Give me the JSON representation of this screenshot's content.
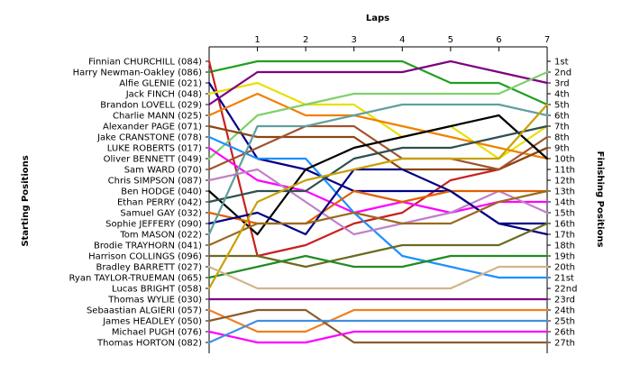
{
  "chart_data": {
    "type": "line",
    "title": "",
    "xlabel": "Laps",
    "ylabel_left": "Starting Positions",
    "ylabel_right": "Finishing Positions",
    "laps": [
      0,
      1,
      2,
      3,
      4,
      5,
      6,
      7
    ],
    "lap_ticks": [
      "1",
      "2",
      "3",
      "4",
      "5",
      "6",
      "7"
    ],
    "finish_labels": [
      "1st",
      "2nd",
      "3rd",
      "4th",
      "5th",
      "6th",
      "7th",
      "8th",
      "9th",
      "10th",
      "11th",
      "12th",
      "13th",
      "14th",
      "15th",
      "16th",
      "17th",
      "18th",
      "19th",
      "20th",
      "21st",
      "22nd",
      "23rd",
      "24th",
      "25th",
      "26th",
      "27th"
    ],
    "grid": false,
    "series": [
      {
        "name": "Harry Newman-Oakley (086)",
        "color": "#1fa01f",
        "positions": [
          2,
          1,
          1,
          1,
          1,
          3,
          3,
          5
        ]
      },
      {
        "name": "Finnian CHURCHILL (084)",
        "color": "#c82020",
        "positions": [
          1,
          19,
          18,
          16,
          15,
          12,
          11,
          9
        ]
      },
      {
        "name": "Alfie GLENIE (021)",
        "color": "#000088",
        "positions": [
          3,
          10,
          11,
          13,
          13,
          13,
          16,
          16
        ]
      },
      {
        "name": "Jack FINCH (048)",
        "color": "#e8e000",
        "positions": [
          4,
          3,
          5,
          5,
          8,
          7,
          10,
          7
        ]
      },
      {
        "name": "Brandon LOVELL (029)",
        "color": "#800080",
        "positions": [
          5,
          2,
          2,
          2,
          2,
          1,
          2,
          3
        ]
      },
      {
        "name": "Charlie MANN (025)",
        "color": "#f08000",
        "positions": [
          6,
          4,
          6,
          6,
          7,
          8,
          9,
          10
        ]
      },
      {
        "name": "Oliver BENNETT (049)",
        "color": "#7fd06a",
        "positions": [
          10,
          6,
          5,
          4,
          4,
          4,
          4,
          2
        ]
      },
      {
        "name": "Alexander PAGE (071)",
        "color": "#8b4513",
        "positions": [
          7,
          8,
          8,
          8,
          11,
          11,
          11,
          9
        ]
      },
      {
        "name": "LUKE ROBERTS (017)",
        "color": "#ff00ff",
        "positions": [
          9,
          12,
          13,
          15,
          14,
          15,
          14,
          14
        ]
      },
      {
        "name": "Jake CRANSTONE (078)",
        "color": "#1e90ff",
        "positions": [
          8,
          10,
          10,
          15,
          19,
          20,
          21,
          21
        ]
      },
      {
        "name": "Sam WARD (070)",
        "color": "#a0522d",
        "positions": [
          11,
          9,
          7,
          7,
          10,
          10,
          11,
          8
        ]
      },
      {
        "name": "Chris SIMPSON (087)",
        "color": "#c080c8",
        "positions": [
          12,
          11,
          14,
          17,
          16,
          15,
          13,
          15
        ]
      },
      {
        "name": "Ben HODGE (040)",
        "color": "#000000",
        "positions": [
          13,
          17,
          11,
          9,
          8,
          7,
          6,
          10
        ]
      },
      {
        "name": "Ethan PERRY (042)",
        "color": "#2f4f4f",
        "positions": [
          14,
          13,
          13,
          10,
          9,
          9,
          8,
          7
        ]
      },
      {
        "name": "Samuel GAY (032)",
        "color": "#e06000",
        "positions": [
          15,
          16,
          16,
          13,
          14,
          13,
          13,
          13
        ]
      },
      {
        "name": "Sophie JEFFERY (090)",
        "color": "#000080",
        "positions": [
          16,
          15,
          17,
          11,
          11,
          13,
          16,
          17
        ]
      },
      {
        "name": "Tom MASON (022)",
        "color": "#5fa0a0",
        "positions": [
          17,
          7,
          7,
          6,
          5,
          5,
          5,
          6
        ]
      },
      {
        "name": "Brodie TRAYHORN (041)",
        "color": "#9a6a20",
        "positions": [
          18,
          16,
          16,
          15,
          16,
          16,
          14,
          13
        ]
      },
      {
        "name": "Harrison COLLINGS (096)",
        "color": "#6b6b20",
        "positions": [
          19,
          19,
          20,
          19,
          18,
          18,
          18,
          16
        ]
      },
      {
        "name": "Ryan TAYLOR-TRUEMAN (065)",
        "color": "#228b22",
        "positions": [
          21,
          20,
          19,
          20,
          20,
          19,
          19,
          19
        ]
      },
      {
        "name": "Lucas BRIGHT (058)",
        "color": "#c8a000",
        "positions": [
          22,
          14,
          12,
          11,
          10,
          10,
          10,
          5
        ]
      },
      {
        "name": "Bradley BARRETT (027)",
        "color": "#d2b48c",
        "positions": [
          20,
          22,
          22,
          22,
          22,
          22,
          20,
          20
        ]
      },
      {
        "name": "Thomas WYLIE (030)",
        "color": "#800080",
        "positions": [
          23,
          23,
          23,
          23,
          23,
          23,
          23,
          23
        ]
      },
      {
        "name": "Sebaastian ALGIERI (057)",
        "color": "#f08020",
        "positions": [
          24,
          26,
          26,
          24,
          24,
          24,
          24,
          24
        ]
      },
      {
        "name": "James HEADLEY (050)",
        "color": "#8b5a2b",
        "positions": [
          25,
          24,
          24,
          27,
          27,
          27,
          27,
          27
        ]
      },
      {
        "name": "Michael PUGH (076)",
        "color": "#ff00ff",
        "positions": [
          26,
          27,
          27,
          26,
          26,
          26,
          26,
          26
        ]
      },
      {
        "name": "Thomas HORTON (082)",
        "color": "#4090e0",
        "positions": [
          27,
          25,
          25,
          25,
          25,
          25,
          25,
          25
        ]
      }
    ]
  }
}
